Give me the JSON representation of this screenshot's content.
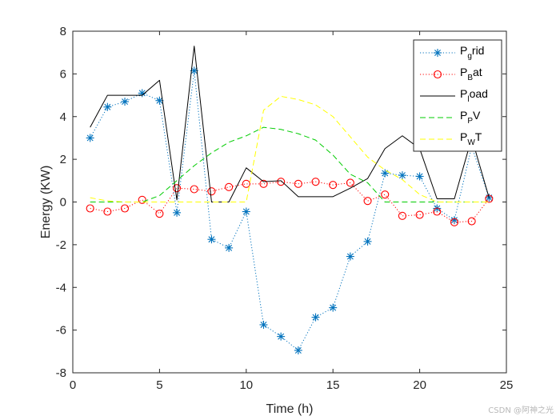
{
  "chart_data": {
    "type": "line",
    "title": "",
    "xlabel": "Time (h)",
    "ylabel": "Energy (KW)",
    "xlim": [
      0,
      25
    ],
    "ylim": [
      -8,
      8
    ],
    "xticks": [
      0,
      5,
      10,
      15,
      20,
      25
    ],
    "yticks": [
      -8,
      -6,
      -4,
      -2,
      0,
      2,
      4,
      6,
      8
    ],
    "grid": false,
    "legend_position": "top-right",
    "x": [
      1,
      2,
      3,
      4,
      5,
      6,
      7,
      8,
      9,
      10,
      11,
      12,
      13,
      14,
      15,
      16,
      17,
      18,
      19,
      20,
      21,
      22,
      23,
      24
    ],
    "series": [
      {
        "name": "Pgrid",
        "base": "P",
        "sub": "g",
        "rest": "rid",
        "color": "#0072BD",
        "style": "dotted",
        "marker": "asterisk",
        "values": [
          3.0,
          4.45,
          4.7,
          5.1,
          4.75,
          -0.5,
          6.15,
          -1.75,
          -2.15,
          -0.45,
          -5.75,
          -6.3,
          -6.95,
          -5.4,
          -4.95,
          -2.55,
          -1.85,
          1.35,
          1.25,
          1.2,
          -0.3,
          -0.85,
          2.6,
          0.2
        ]
      },
      {
        "name": "PBat",
        "base": "P",
        "sub": "B",
        "rest": "at",
        "color": "#FF0000",
        "style": "dotted",
        "marker": "circle",
        "values": [
          -0.3,
          -0.45,
          -0.3,
          0.1,
          -0.55,
          0.65,
          0.6,
          0.5,
          0.7,
          0.85,
          0.85,
          0.95,
          0.85,
          0.95,
          0.8,
          0.9,
          0.05,
          0.35,
          -0.65,
          -0.6,
          -0.45,
          -0.95,
          -0.9,
          0.15
        ]
      },
      {
        "name": "Pload",
        "base": "P",
        "sub": "l",
        "rest": "oad",
        "color": "#000000",
        "style": "solid",
        "marker": "none",
        "values": [
          3.5,
          5.0,
          5.0,
          5.0,
          5.7,
          0.1,
          7.3,
          0.0,
          0.0,
          1.6,
          0.95,
          1.0,
          0.25,
          0.25,
          0.25,
          0.65,
          1.1,
          2.5,
          3.1,
          2.5,
          0.15,
          0.15,
          3.0,
          0.2
        ]
      },
      {
        "name": "PPV",
        "base": "P",
        "sub": "P",
        "rest": "V",
        "color": "#00CC00",
        "style": "dashed",
        "marker": "none",
        "values": [
          0.0,
          0.0,
          0.0,
          0.0,
          0.3,
          1.0,
          1.7,
          2.3,
          2.8,
          3.1,
          3.5,
          3.4,
          3.2,
          2.9,
          2.2,
          1.3,
          0.9,
          0.0,
          0.0,
          0.0,
          0.0,
          0.0,
          0.0,
          0.0
        ]
      },
      {
        "name": "PWT",
        "base": "P",
        "sub": "W",
        "rest": "T",
        "color": "#FFFF00",
        "style": "dashed",
        "marker": "none",
        "values": [
          0.2,
          0.05,
          0.0,
          0.0,
          0.0,
          0.0,
          0.0,
          0.0,
          0.0,
          0.0,
          4.3,
          4.95,
          4.8,
          4.55,
          4.0,
          3.05,
          2.1,
          1.5,
          1.05,
          0.35,
          0.0,
          0.0,
          0.0,
          0.0
        ]
      }
    ]
  },
  "watermark": "CSDN @阿神之光"
}
